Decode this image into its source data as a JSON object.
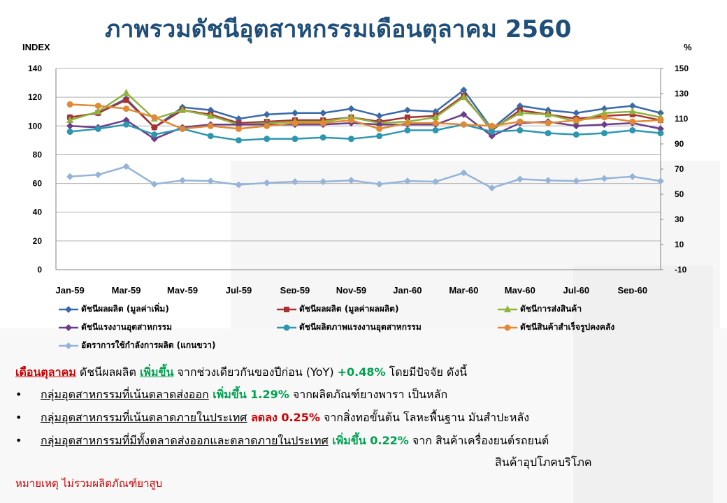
{
  "title": "ภาพรวมดัชนีอุตสาหกรรมเดือนตุลาคม 2560",
  "left_axis_unit": "INDEX",
  "right_axis_unit": "%",
  "chart_data": {
    "type": "line",
    "title": "ภาพรวมดัชนีอุตสาหกรรมเดือนตุลาคม 2560",
    "ylabel": "INDEX",
    "ylabel_right": "%",
    "ylim": [
      0,
      140
    ],
    "ylim_right": [
      -10,
      150
    ],
    "yticks": [
      0,
      20,
      40,
      60,
      80,
      100,
      120,
      140
    ],
    "yticks_right": [
      -10,
      10,
      30,
      50,
      70,
      90,
      110,
      130,
      150
    ],
    "x": [
      "Jan-59",
      "Feb-59",
      "Mar-59",
      "Apr-59",
      "May-59",
      "Jun-59",
      "Jul-59",
      "Aug-59",
      "Sep-59",
      "Oct-59",
      "Nov-59",
      "Dec-59",
      "Jan-60",
      "Feb-60",
      "Mar-60",
      "Apr-60",
      "May-60",
      "Jun-60",
      "Jul-60",
      "Aug-60",
      "Sep-60",
      "Oct-60"
    ],
    "x_tick_labels": [
      "Jan-59",
      "Mar-59",
      "May-59",
      "Jul-59",
      "Sep-59",
      "Nov-59",
      "Jan-60",
      "Mar-60",
      "May-60",
      "Jul-60",
      "Sep-60"
    ],
    "grid": true,
    "legend_position": "bottom",
    "series": [
      {
        "name": "ดัชนีผลผลิต (มูลค่าเพิ่ม)",
        "color": "#3a6aa8",
        "marker": "diamond",
        "axis": "left",
        "values": [
          106,
          109,
          119,
          99,
          113,
          111,
          105,
          108,
          109,
          109,
          112,
          107,
          111,
          110,
          125,
          98,
          114,
          111,
          109,
          112,
          114,
          109
        ]
      },
      {
        "name": "ดัชนีผลผลิต (มูลค่าผลผลิต)",
        "color": "#a83232",
        "marker": "square",
        "axis": "left",
        "values": [
          106,
          109,
          118,
          99,
          111,
          108,
          102,
          103,
          104,
          104,
          106,
          103,
          106,
          107,
          121,
          97,
          111,
          108,
          105,
          107,
          108,
          104
        ]
      },
      {
        "name": "ดัชนีการส่งสินค้า",
        "color": "#8eb43c",
        "marker": "triangle",
        "axis": "left",
        "values": [
          104,
          110,
          123,
          105,
          111,
          107,
          101,
          102,
          103,
          103,
          106,
          102,
          103,
          106,
          120,
          98,
          109,
          108,
          103,
          109,
          110,
          106
        ]
      },
      {
        "name": "ดัชนีแรงงานอุตสาหกรรม",
        "color": "#6b3d8a",
        "marker": "diamond",
        "axis": "left",
        "values": [
          100,
          99,
          104,
          91,
          99,
          101,
          101,
          101,
          101,
          101,
          102,
          101,
          101,
          101,
          108,
          93,
          102,
          103,
          100,
          101,
          102,
          98
        ]
      },
      {
        "name": "ดัชนีผลิตภาพแรงงานอุตสาหกรรม",
        "color": "#2e97b0",
        "marker": "circle",
        "axis": "left",
        "values": [
          96,
          98,
          101,
          94,
          98,
          93,
          90,
          91,
          91,
          92,
          91,
          93,
          97,
          97,
          101,
          96,
          97,
          95,
          94,
          95,
          97,
          95
        ]
      },
      {
        "name": "ดัชนีสินค้าสำเร็จรูปคงคลัง",
        "color": "#e08a35",
        "marker": "circle",
        "axis": "left",
        "values": [
          115,
          114,
          112,
          106,
          98,
          100,
          98,
          100,
          102,
          102,
          104,
          98,
          102,
          102,
          101,
          100,
          103,
          102,
          104,
          106,
          103,
          104
        ]
      },
      {
        "name": "อัตราการใช้กำลังการผลิต (แกนขวา)",
        "color": "#96b4d8",
        "marker": "diamond",
        "axis": "right",
        "values": [
          64,
          65.5,
          72,
          58,
          61,
          60.5,
          57.5,
          59,
          60,
          60,
          61,
          58,
          60.5,
          60,
          67,
          55,
          62,
          61,
          60.5,
          62.5,
          64,
          60.5
        ]
      }
    ]
  },
  "summary": {
    "line1_month": "เดือนตุลาคม",
    "line1_a": " ดัชนีผลผลิต ",
    "line1_up": "เพิ่มขึ้น",
    "line1_b": " จากช่วงเดียวกันของปีก่อน (YoY) ",
    "line1_val": "+0.48%",
    "line1_c": " โดยมีปัจจัย ดังนี้",
    "b1_group": "กลุ่มอุตสาหกรรมที่เน้นตลาดส่งออก",
    "b1_change": " เพิ่มขึ้น 1.29%",
    "b1_rest": " จากผลิตภัณฑ์ยางพารา เป็นหลัก",
    "b2_group": "กลุ่มอุตสาหกรรมที่เน้นตลาดภายในประเทศ",
    "b2_change": " ลดลง 0.25%",
    "b2_rest": " จากสิ่งทอขั้นต้น โลหะพื้นฐาน มันสำปะหลัง",
    "b3_group": "กลุ่มอุตสาหกรรมที่มีทั้งตลาดส่งออกและตลาดภายในประเทศ",
    "b3_change": " เพิ่มขึ้น 0.22%",
    "b3_rest": " จาก สินค้าเครื่องยนต์รถยนต์",
    "b3_rest2": "สินค้าอุปโภคบริโภค",
    "bullet": "•"
  },
  "note": "หมายเหตุ ไม่รวมผลิตภัณฑ์ยาสูบ"
}
